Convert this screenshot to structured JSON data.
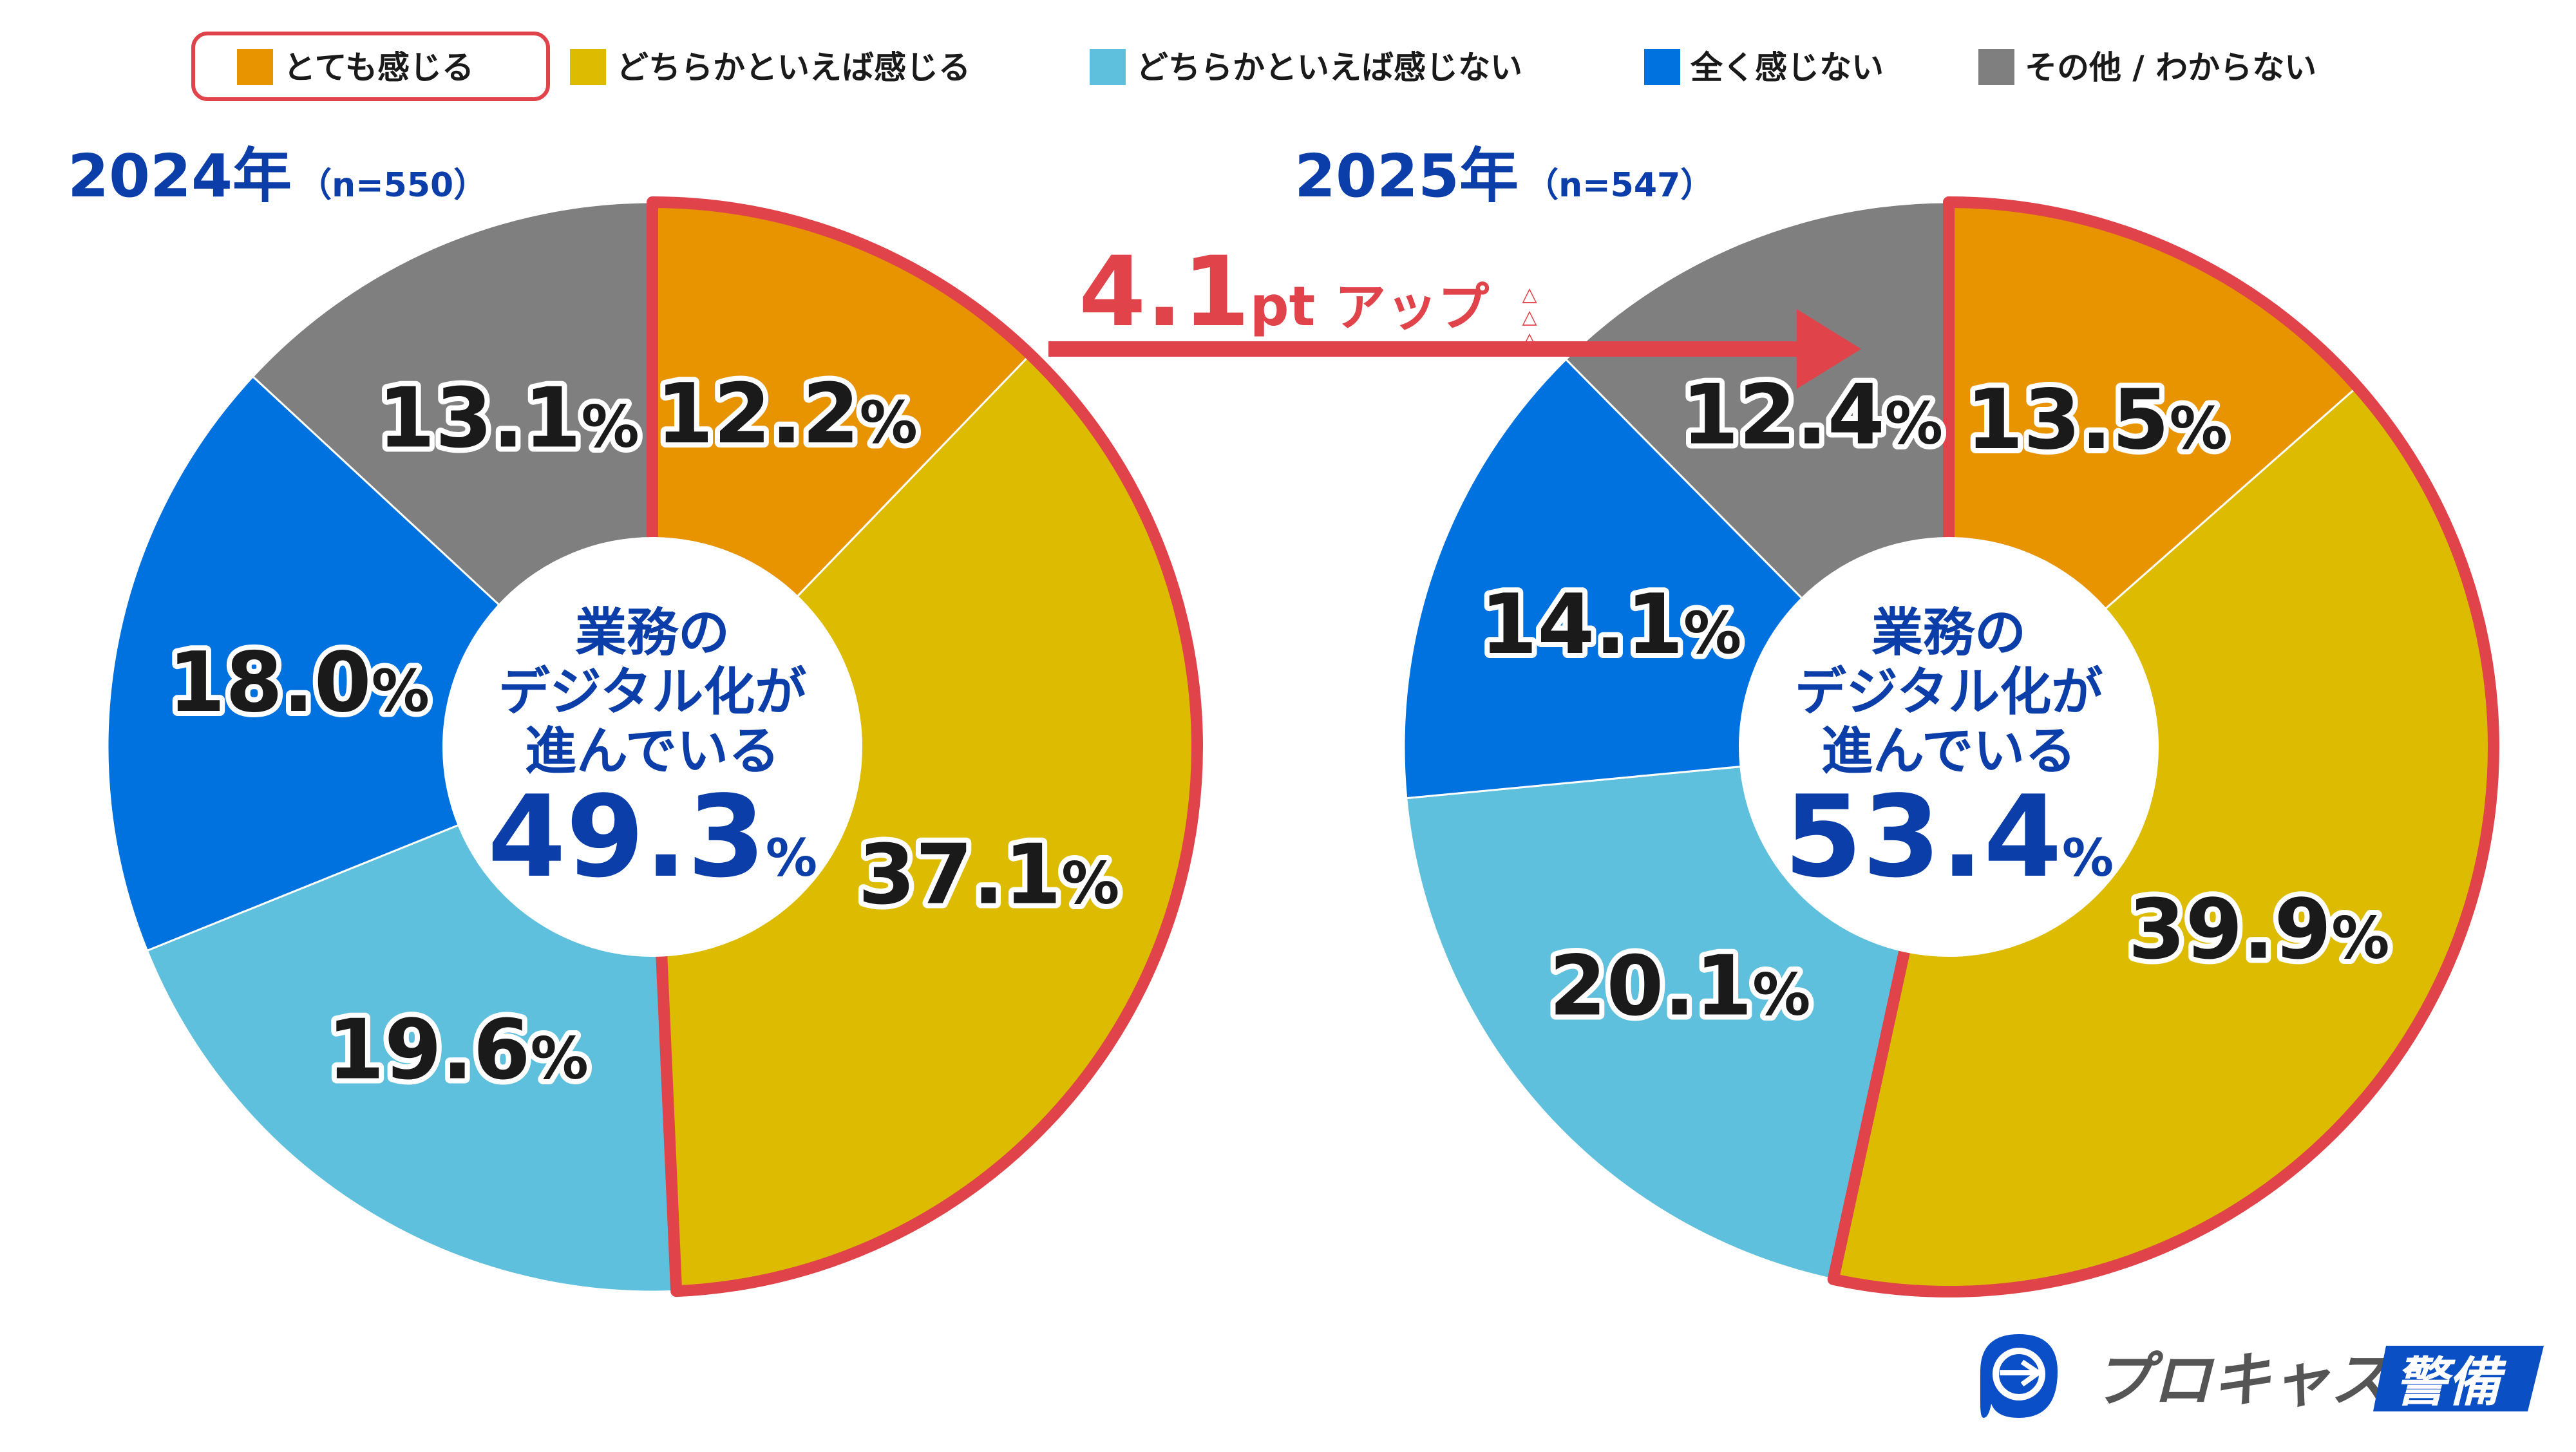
{
  "chart_data": {
    "type": "pie",
    "legend": {
      "placement": "top",
      "items": [
        {
          "label": "とても感じる",
          "color": "#E89300",
          "highlighted": true
        },
        {
          "label": "どちらかといえば感じる",
          "color": "#DDBB00"
        },
        {
          "label": "どちらかといえば感じない",
          "color": "#5EC0DC"
        },
        {
          "label": "全く感じない",
          "color": "#0072E0"
        },
        {
          "label": "その他 / わからない",
          "color": "#7F7F7F"
        }
      ]
    },
    "charts": [
      {
        "year": "2024年",
        "n": "（n=550）",
        "values": [
          12.2,
          37.1,
          19.6,
          18.0,
          13.1
        ],
        "center": {
          "line1": "業務の",
          "line2": "デジタル化が",
          "line3": "進んでいる",
          "value": "49.3",
          "unit": "%"
        }
      },
      {
        "year": "2025年",
        "n": "（n=547）",
        "values": [
          13.5,
          39.9,
          20.1,
          14.1,
          12.4
        ],
        "center": {
          "line1": "業務の",
          "line2": "デジタル化が",
          "line3": "進んでいる",
          "value": "53.4",
          "unit": "%"
        }
      }
    ],
    "annotation": {
      "value": "4.1",
      "unit": "pt",
      "text": "アップ",
      "marks": "△△△"
    },
    "highlight_color": "#E0444A"
  },
  "logo": {
    "text": "プロキャス",
    "badge": "警備"
  }
}
